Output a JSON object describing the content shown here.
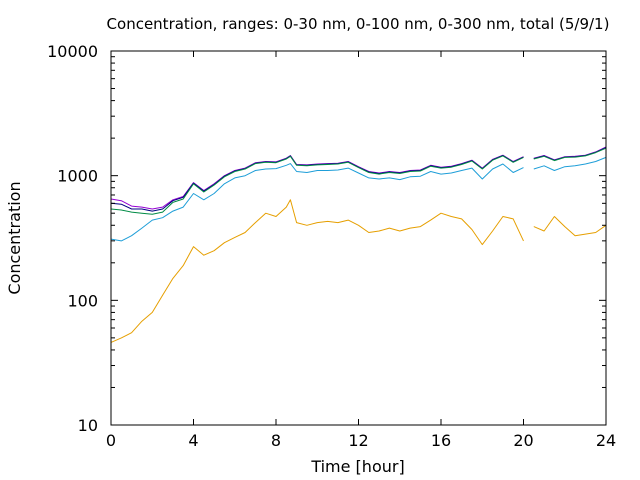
{
  "chart_data": {
    "type": "line",
    "title": "Concentration, ranges: 0-30 nm, 0-100 nm, 0-300 nm, total (5/9/1)",
    "xlabel": "Time [hour]",
    "ylabel": "Concentration",
    "xlim": [
      0,
      24
    ],
    "ylim": [
      10,
      10000
    ],
    "yscale": "log",
    "x_ticks": [
      0,
      4,
      8,
      12,
      16,
      20,
      24
    ],
    "x_tick_labels": [
      "0",
      "4",
      "8",
      "12",
      "16",
      "20",
      "24"
    ],
    "y_ticks": [
      10,
      100,
      1000,
      10000
    ],
    "y_tick_labels": [
      "10",
      "100",
      "1000",
      "10000"
    ],
    "grid": false,
    "legend": "none",
    "gaps": [
      [
        20.1,
        20.35
      ]
    ],
    "series": [
      {
        "color": "#9400d3",
        "x": [
          0,
          0.5,
          1,
          1.5,
          2,
          2.5,
          3,
          3.5,
          4,
          4.5,
          5,
          5.5,
          6,
          6.5,
          7,
          7.5,
          8,
          8.5,
          8.7,
          9,
          9.5,
          10,
          10.5,
          11,
          11.5,
          12,
          12.5,
          13,
          13.5,
          14,
          14.5,
          15,
          15.5,
          16,
          16.5,
          17,
          17.5,
          18,
          18.5,
          19,
          19.5,
          20,
          20.5,
          21,
          21.5,
          22,
          22.5,
          23,
          23.5,
          24
        ],
        "values": [
          650,
          630,
          570,
          560,
          540,
          560,
          640,
          680,
          880,
          760,
          860,
          1000,
          1100,
          1150,
          1270,
          1300,
          1290,
          1380,
          1450,
          1230,
          1220,
          1240,
          1250,
          1260,
          1300,
          1180,
          1080,
          1050,
          1080,
          1060,
          1100,
          1110,
          1210,
          1170,
          1190,
          1250,
          1330,
          1150,
          1350,
          1460,
          1300,
          1420,
          1380,
          1450,
          1340,
          1420,
          1430,
          1460,
          1550,
          1700
        ]
      },
      {
        "color": "#000080",
        "x": [
          0,
          0.5,
          1,
          1.5,
          2,
          2.5,
          3,
          3.5,
          4,
          4.5,
          5,
          5.5,
          6,
          6.5,
          7,
          7.5,
          8,
          8.5,
          8.7,
          9,
          9.5,
          10,
          10.5,
          11,
          11.5,
          12,
          12.5,
          13,
          13.5,
          14,
          14.5,
          15,
          15.5,
          16,
          16.5,
          17,
          17.5,
          18,
          18.5,
          19,
          19.5,
          20,
          20.5,
          21,
          21.5,
          22,
          22.5,
          23,
          23.5,
          24
        ],
        "values": [
          600,
          590,
          540,
          540,
          520,
          540,
          630,
          670,
          870,
          750,
          850,
          990,
          1090,
          1140,
          1260,
          1290,
          1280,
          1370,
          1440,
          1220,
          1210,
          1230,
          1240,
          1250,
          1290,
          1170,
          1070,
          1040,
          1070,
          1050,
          1090,
          1100,
          1200,
          1160,
          1180,
          1240,
          1320,
          1140,
          1340,
          1450,
          1290,
          1410,
          1370,
          1440,
          1330,
          1410,
          1420,
          1450,
          1540,
          1680
        ]
      },
      {
        "color": "#008b45",
        "x": [
          0,
          0.5,
          1,
          1.5,
          2,
          2.5,
          3,
          3.5,
          4,
          4.5,
          5,
          5.5,
          6,
          6.5,
          7,
          7.5,
          8,
          8.5,
          8.7,
          9,
          9.5,
          10,
          10.5,
          11,
          11.5,
          12,
          12.5,
          13,
          13.5,
          14,
          14.5,
          15,
          15.5,
          16,
          16.5,
          17,
          17.5,
          18,
          18.5,
          19,
          19.5,
          20,
          20.5,
          21,
          21.5,
          22,
          22.5,
          23,
          23.5,
          24
        ],
        "values": [
          540,
          530,
          510,
          500,
          490,
          510,
          610,
          650,
          860,
          740,
          840,
          980,
          1080,
          1130,
          1250,
          1280,
          1270,
          1360,
          1430,
          1210,
          1200,
          1220,
          1230,
          1240,
          1280,
          1160,
          1060,
          1030,
          1060,
          1040,
          1080,
          1090,
          1190,
          1150,
          1170,
          1230,
          1310,
          1130,
          1330,
          1440,
          1280,
          1400,
          1360,
          1430,
          1320,
          1400,
          1410,
          1440,
          1530,
          1660
        ]
      },
      {
        "color": "#1e9ed8",
        "x": [
          0,
          0.5,
          1,
          1.5,
          2,
          2.5,
          3,
          3.5,
          4,
          4.5,
          5,
          5.5,
          6,
          6.5,
          7,
          7.5,
          8,
          8.5,
          8.7,
          9,
          9.5,
          10,
          10.5,
          11,
          11.5,
          12,
          12.5,
          13,
          13.5,
          14,
          14.5,
          15,
          15.5,
          16,
          16.5,
          17,
          17.5,
          18,
          18.5,
          19,
          19.5,
          20,
          20.5,
          21,
          21.5,
          22,
          22.5,
          23,
          23.5,
          24
        ],
        "values": [
          310,
          300,
          330,
          380,
          440,
          460,
          520,
          560,
          720,
          640,
          720,
          860,
          960,
          1000,
          1100,
          1130,
          1140,
          1210,
          1250,
          1080,
          1060,
          1100,
          1100,
          1110,
          1150,
          1050,
          960,
          940,
          960,
          930,
          980,
          990,
          1080,
          1030,
          1050,
          1100,
          1150,
          940,
          1130,
          1240,
          1060,
          1160,
          1130,
          1200,
          1100,
          1180,
          1200,
          1240,
          1300,
          1400
        ]
      },
      {
        "color": "#e69f00",
        "x": [
          0,
          0.5,
          1,
          1.5,
          2,
          2.5,
          3,
          3.5,
          4,
          4.5,
          5,
          5.5,
          6,
          6.5,
          7,
          7.5,
          8,
          8.5,
          8.7,
          9,
          9.5,
          10,
          10.5,
          11,
          11.5,
          12,
          12.5,
          13,
          13.5,
          14,
          14.5,
          15,
          15.5,
          16,
          16.5,
          17,
          17.5,
          18,
          18.5,
          19,
          19.5,
          20,
          20.5,
          21,
          21.5,
          22,
          22.5,
          23,
          23.5,
          24
        ],
        "values": [
          46,
          50,
          55,
          68,
          80,
          110,
          150,
          190,
          270,
          230,
          250,
          290,
          320,
          350,
          420,
          500,
          470,
          560,
          640,
          420,
          400,
          420,
          430,
          420,
          440,
          400,
          350,
          360,
          380,
          360,
          380,
          390,
          440,
          500,
          470,
          450,
          370,
          280,
          360,
          470,
          450,
          300,
          390,
          360,
          470,
          390,
          330,
          340,
          350,
          400
        ]
      }
    ]
  }
}
